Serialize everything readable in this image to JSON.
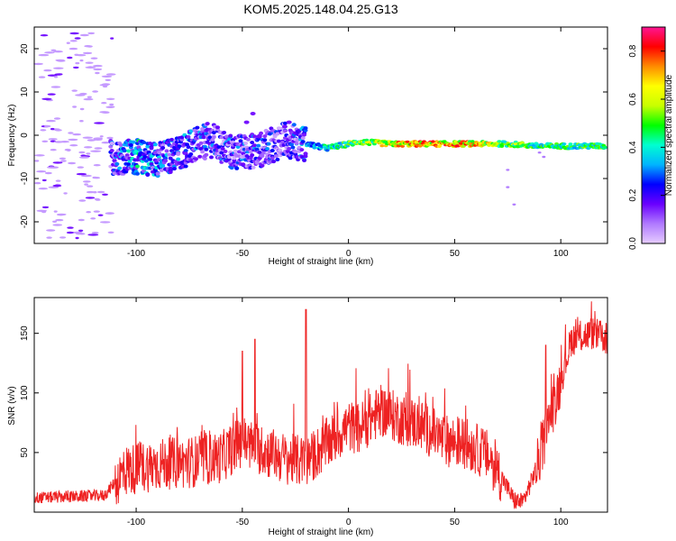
{
  "figure_title": "KOM5.2025.148.04.25.G13",
  "colors": {
    "signal_line": "#ee2222",
    "frame": "#000000",
    "colormap_stops": [
      "#e6ccff",
      "#b07aff",
      "#6a00ff",
      "#0000ff",
      "#00b4ff",
      "#00ffd0",
      "#00ff00",
      "#c8ff00",
      "#ffff00",
      "#ff8c00",
      "#ff0000",
      "#ff1493"
    ]
  },
  "chart_data": [
    {
      "type": "heatmap",
      "title": "KOM5.2025.148.04.25.G13",
      "xlabel": "Height of straight line (km)",
      "ylabel": "Frequency (Hz)",
      "xlim": [
        -148,
        122
      ],
      "ylim": [
        -25,
        25
      ],
      "x_ticks": [
        -100,
        -50,
        0,
        50,
        100
      ],
      "y_ticks": [
        -20,
        -10,
        0,
        10,
        20
      ],
      "colorbar": {
        "label": "Normalized spectral amplitude",
        "range": [
          0.0,
          0.9
        ],
        "ticks": [
          "0.0",
          "0.2",
          "0.4",
          "0.6",
          "0.8"
        ]
      },
      "grid": false,
      "features": [
        {
          "name": "scattered weak echoes",
          "x_range": [
            -148,
            -110
          ],
          "freq_range": [
            -25,
            25
          ],
          "amplitude": 0.05
        },
        {
          "name": "main echo band",
          "points": [
            {
              "x": -112,
              "freq": -5,
              "amp": 0.3
            },
            {
              "x": -100,
              "freq": -5,
              "amp": 0.45
            },
            {
              "x": -88,
              "freq": -5.5,
              "amp": 0.35
            },
            {
              "x": -75,
              "freq": -3,
              "amp": 0.35
            },
            {
              "x": -65,
              "freq": -1,
              "amp": 0.3
            },
            {
              "x": -55,
              "freq": -4,
              "amp": 0.3
            },
            {
              "x": -42,
              "freq": -3.5,
              "amp": 0.3
            },
            {
              "x": -30,
              "freq": -1,
              "amp": 0.25
            },
            {
              "x": -20,
              "freq": -2,
              "amp": 0.35
            },
            {
              "x": -10,
              "freq": -3,
              "amp": 0.45
            },
            {
              "x": 5,
              "freq": -1.5,
              "amp": 0.55
            },
            {
              "x": 20,
              "freq": -2,
              "amp": 0.75
            },
            {
              "x": 50,
              "freq": -2,
              "amp": 0.8
            },
            {
              "x": 75,
              "freq": -2,
              "amp": 0.6
            },
            {
              "x": 90,
              "freq": -2.5,
              "amp": 0.5
            },
            {
              "x": 122,
              "freq": -2.5,
              "amp": 0.5
            }
          ]
        }
      ]
    },
    {
      "type": "line",
      "xlabel": "Height of straight line (km)",
      "ylabel": "SNR (v/v)",
      "xlim": [
        -148,
        122
      ],
      "ylim": [
        0,
        180
      ],
      "x_ticks": [
        -100,
        -50,
        0,
        50,
        100
      ],
      "y_ticks": [
        50,
        100,
        150
      ],
      "grid": false,
      "series": [
        {
          "color": "#ee2222",
          "x": [
            -148,
            -130,
            -115,
            -110,
            -105,
            -90,
            -75,
            -60,
            -50,
            -45,
            -30,
            -20,
            -5,
            0,
            5,
            15,
            25,
            35,
            45,
            55,
            65,
            72,
            78,
            82,
            86,
            90,
            95,
            100,
            105,
            115,
            122
          ],
          "y": [
            12,
            13,
            14,
            25,
            35,
            40,
            42,
            46,
            60,
            55,
            45,
            42,
            65,
            72,
            70,
            85,
            78,
            72,
            60,
            58,
            48,
            30,
            10,
            8,
            25,
            45,
            80,
            110,
            145,
            150,
            145
          ]
        }
      ],
      "spikes": [
        {
          "x": -50,
          "y": 135
        },
        {
          "x": -44,
          "y": 145
        },
        {
          "x": -20,
          "y": 170
        },
        {
          "x": 93,
          "y": 140
        }
      ]
    }
  ]
}
